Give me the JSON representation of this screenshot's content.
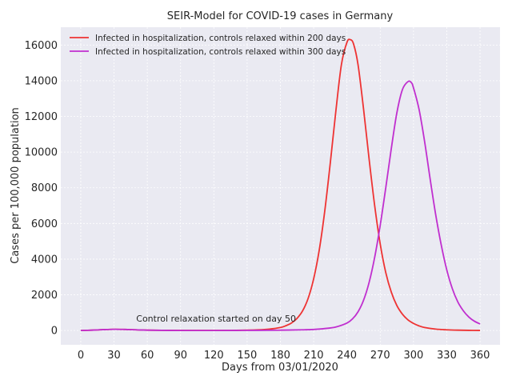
{
  "chart_data": {
    "type": "line",
    "title": "SEIR-Model for COVID-19 cases in Germany",
    "xlabel": "Days from 03/01/2020",
    "ylabel": "Cases per 100,000 population",
    "xlim": [
      -18,
      378
    ],
    "ylim": [
      -800,
      17000
    ],
    "xticks": [
      0,
      30,
      60,
      90,
      120,
      150,
      180,
      210,
      240,
      270,
      300,
      330,
      360
    ],
    "yticks": [
      0,
      2000,
      4000,
      6000,
      8000,
      10000,
      12000,
      14000,
      16000
    ],
    "grid": true,
    "legend_position": "top-left",
    "annotation": {
      "text": "Control relaxation started on day 50",
      "x": 50,
      "y": 500
    },
    "series": [
      {
        "name": "Infected in hospitalization, controls relaxed within 200 days",
        "color": "#ee3333",
        "x": [
          0,
          10,
          20,
          30,
          40,
          50,
          60,
          80,
          100,
          120,
          140,
          160,
          170,
          180,
          185,
          190,
          195,
          200,
          205,
          210,
          215,
          220,
          225,
          230,
          235,
          240,
          243,
          246,
          250,
          255,
          260,
          265,
          270,
          275,
          280,
          285,
          290,
          295,
          300,
          305,
          310,
          320,
          330,
          340,
          350,
          360
        ],
        "y": [
          0,
          20,
          50,
          70,
          60,
          40,
          20,
          10,
          5,
          5,
          10,
          40,
          80,
          170,
          270,
          420,
          680,
          1100,
          1800,
          2900,
          4500,
          6700,
          9400,
          12300,
          14900,
          16150,
          16300,
          16050,
          14900,
          12400,
          9600,
          7000,
          4850,
          3250,
          2150,
          1400,
          920,
          600,
          400,
          260,
          170,
          80,
          40,
          20,
          10,
          5
        ]
      },
      {
        "name": "Infected in hospitalization, controls relaxed within 300 days",
        "color": "#c02fcf",
        "x": [
          0,
          10,
          20,
          30,
          40,
          50,
          60,
          80,
          100,
          120,
          140,
          160,
          180,
          200,
          210,
          220,
          230,
          240,
          245,
          250,
          255,
          260,
          265,
          270,
          275,
          280,
          285,
          290,
          295,
          298,
          300,
          305,
          310,
          315,
          320,
          325,
          330,
          335,
          340,
          345,
          350,
          355,
          360
        ],
        "y": [
          0,
          20,
          50,
          70,
          60,
          40,
          20,
          5,
          2,
          2,
          5,
          10,
          20,
          40,
          60,
          110,
          200,
          420,
          650,
          1050,
          1700,
          2700,
          4100,
          5900,
          8000,
          10200,
          12200,
          13500,
          13950,
          13900,
          13600,
          12400,
          10600,
          8500,
          6500,
          4800,
          3400,
          2350,
          1600,
          1100,
          750,
          520,
          370
        ]
      }
    ]
  }
}
